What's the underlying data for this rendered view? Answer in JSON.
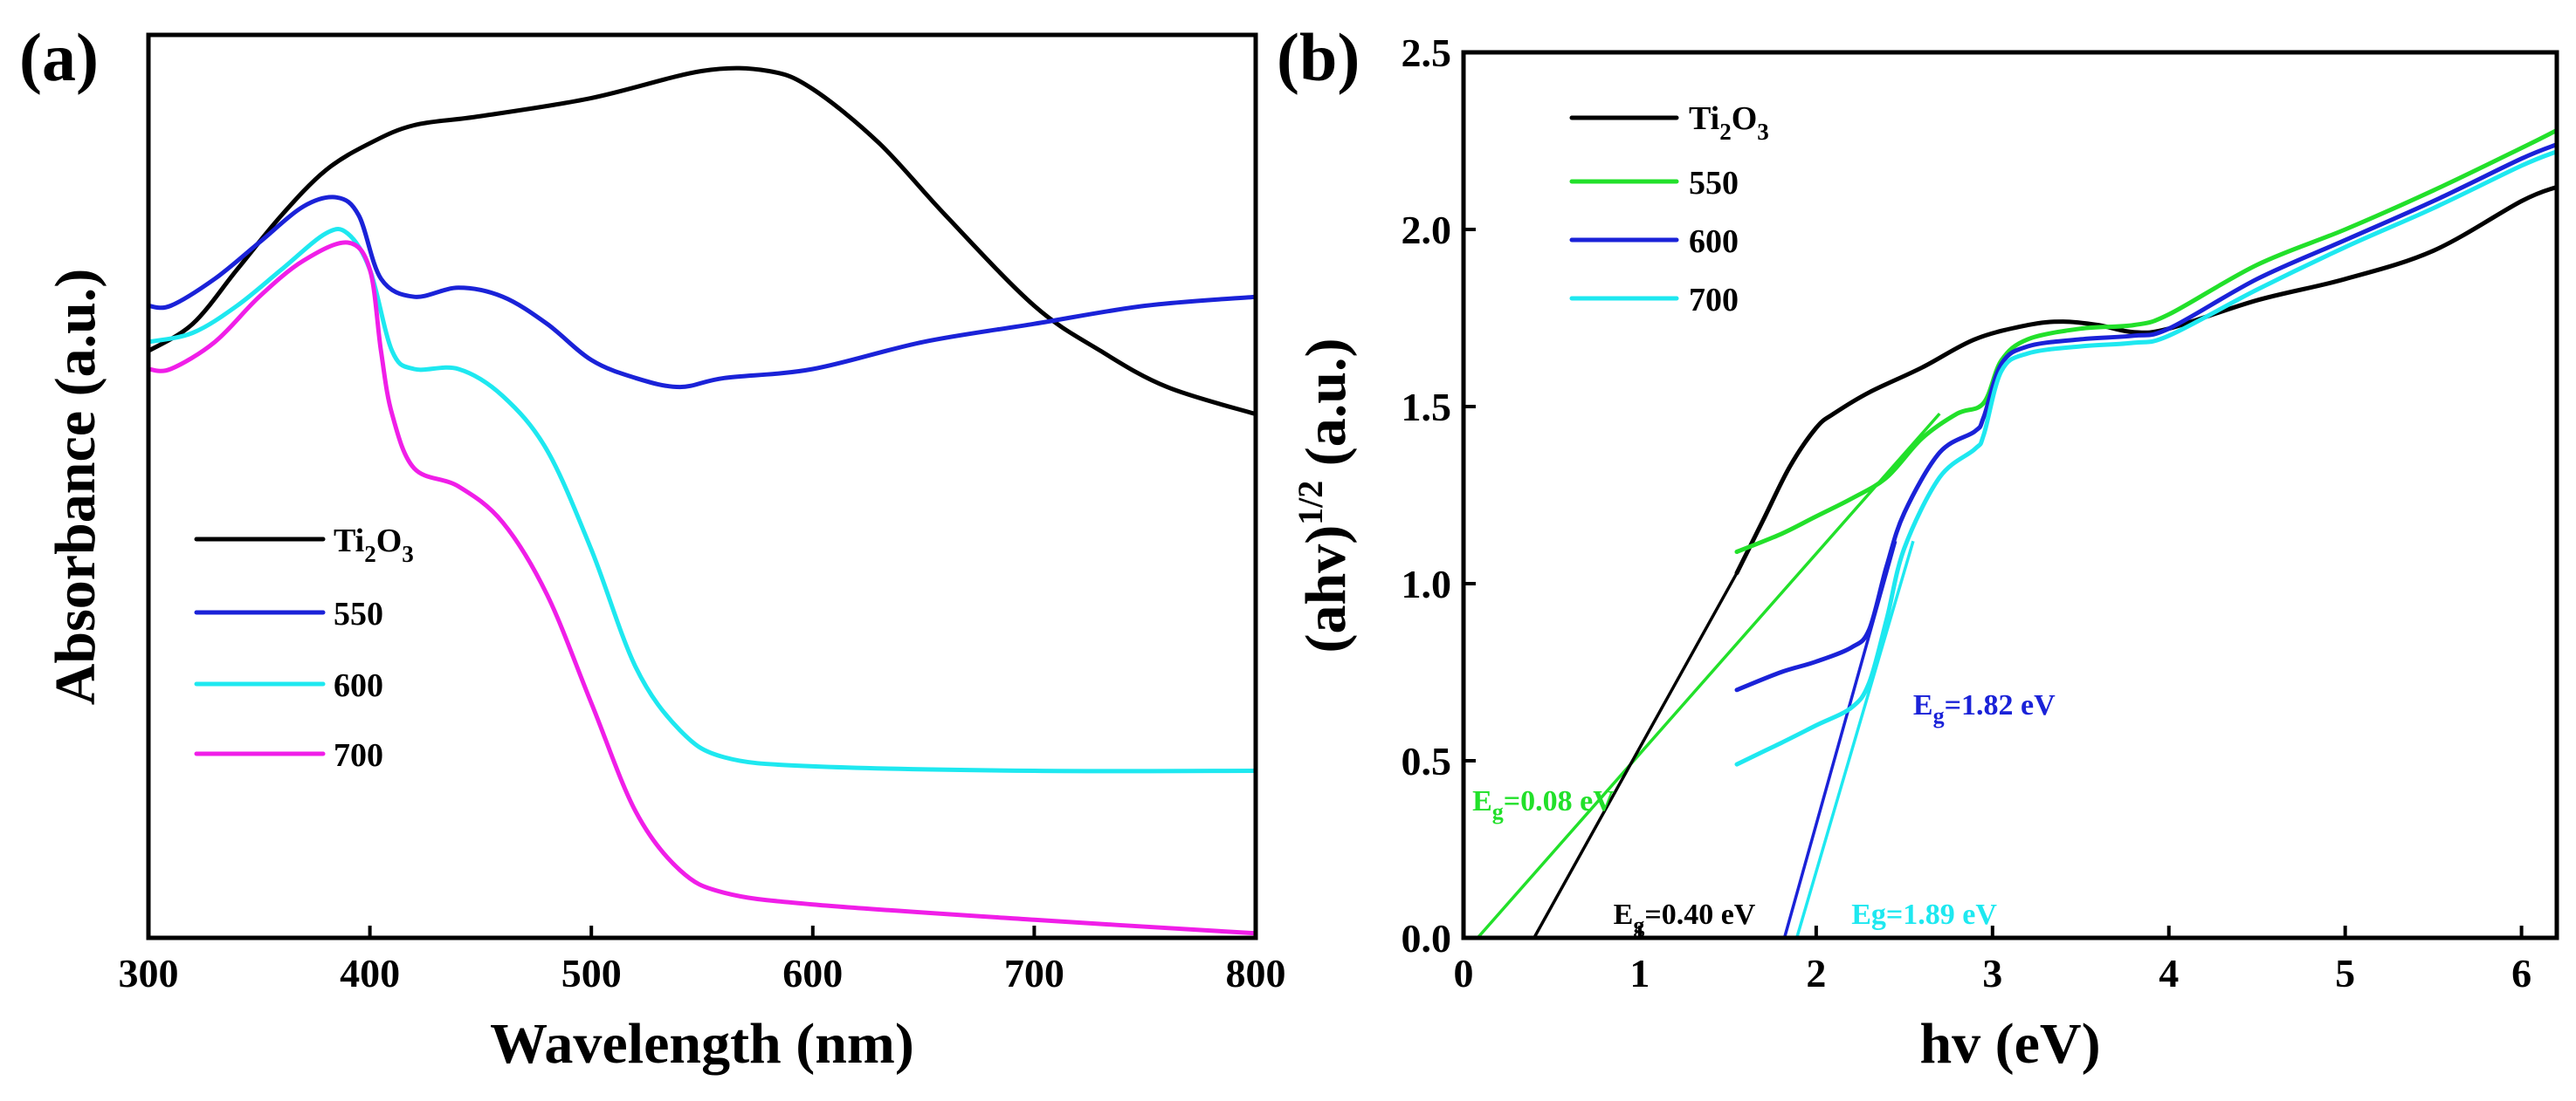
{
  "colors": {
    "Ti2O3": "#000000",
    "blue": "#1a22d8",
    "cyan": "#1ee8f0",
    "magenta": "#f01ee8",
    "green": "#22e02a"
  },
  "chart_data": [
    {
      "panel": "(a)",
      "type": "line",
      "xlabel": "Wavelength (nm)",
      "ylabel": "Absorbance (a.u.)",
      "xlim": [
        300,
        800
      ],
      "ylim": [
        0,
        1
      ],
      "xticks": [
        "300",
        "400",
        "500",
        "600",
        "700",
        "800"
      ],
      "yticks": [],
      "legend": {
        "position": "lower-left",
        "entries": [
          {
            "key": "Ti2O3",
            "prefix": "Ti",
            "sub1": "2",
            "mid": "O",
            "sub2": "3",
            "plain": ""
          },
          {
            "key": "550",
            "plain": "550"
          },
          {
            "key": "600",
            "plain": "600"
          },
          {
            "key": "700",
            "plain": "700"
          }
        ]
      },
      "series": [
        {
          "name": "Ti2O3",
          "color": "Ti2O3",
          "x": [
            300,
            320,
            340,
            360,
            380,
            400,
            420,
            450,
            500,
            550,
            580,
            600,
            630,
            660,
            700,
            730,
            760,
            800
          ],
          "y": [
            0.65,
            0.68,
            0.74,
            0.8,
            0.85,
            0.88,
            0.9,
            0.91,
            0.93,
            0.96,
            0.96,
            0.94,
            0.88,
            0.8,
            0.7,
            0.65,
            0.61,
            0.58
          ]
        },
        {
          "name": "550",
          "color": "blue",
          "x": [
            300,
            310,
            330,
            350,
            370,
            385,
            395,
            405,
            420,
            440,
            460,
            480,
            500,
            520,
            540,
            560,
            600,
            650,
            700,
            750,
            800
          ],
          "y": [
            0.7,
            0.7,
            0.73,
            0.77,
            0.81,
            0.82,
            0.8,
            0.73,
            0.71,
            0.72,
            0.71,
            0.68,
            0.64,
            0.62,
            0.61,
            0.62,
            0.63,
            0.66,
            0.68,
            0.7,
            0.71
          ]
        },
        {
          "name": "600",
          "color": "cyan",
          "x": [
            300,
            320,
            340,
            360,
            380,
            390,
            400,
            410,
            420,
            440,
            460,
            480,
            500,
            520,
            540,
            560,
            600,
            700,
            800
          ],
          "y": [
            0.66,
            0.67,
            0.7,
            0.74,
            0.78,
            0.78,
            0.74,
            0.65,
            0.63,
            0.63,
            0.6,
            0.54,
            0.43,
            0.3,
            0.23,
            0.2,
            0.19,
            0.185,
            0.185
          ]
        },
        {
          "name": "700",
          "color": "magenta",
          "x": [
            300,
            310,
            330,
            350,
            370,
            390,
            400,
            405,
            410,
            420,
            440,
            460,
            480,
            500,
            520,
            540,
            560,
            600,
            700,
            800
          ],
          "y": [
            0.63,
            0.63,
            0.66,
            0.71,
            0.75,
            0.77,
            0.74,
            0.65,
            0.58,
            0.52,
            0.5,
            0.46,
            0.38,
            0.26,
            0.14,
            0.075,
            0.05,
            0.037,
            0.02,
            0.005
          ]
        }
      ]
    },
    {
      "panel": "(b)",
      "type": "line",
      "xlabel": "hv (eV)",
      "ylabel_main": "(ahv)",
      "ylabel_sup": "1/2",
      "ylabel_tail": " (a.u.)",
      "xlim": [
        0,
        6.2
      ],
      "ylim": [
        0,
        2.5
      ],
      "xticks": [
        {
          "v": 0,
          "label": "0"
        },
        {
          "v": 1,
          "label": "1"
        },
        {
          "v": 2,
          "label": "2"
        },
        {
          "v": 3,
          "label": "3"
        },
        {
          "v": 4,
          "label": "4"
        },
        {
          "v": 5,
          "label": "5"
        },
        {
          "v": 6,
          "label": "6"
        }
      ],
      "yticks": [
        {
          "v": 0.0,
          "label": "0.0"
        },
        {
          "v": 0.5,
          "label": "0.5"
        },
        {
          "v": 1.0,
          "label": "1.0"
        },
        {
          "v": 1.5,
          "label": "1.5"
        },
        {
          "v": 2.0,
          "label": "2.0"
        },
        {
          "v": 2.5,
          "label": "2.5"
        }
      ],
      "legend": {
        "position": "top-left",
        "entries": [
          {
            "key": "Ti2O3",
            "prefix": "Ti",
            "sub1": "2",
            "mid": "O",
            "sub2": "3",
            "plain": ""
          },
          {
            "key": "550",
            "plain": "550"
          },
          {
            "key": "600",
            "plain": "600"
          },
          {
            "key": "700",
            "plain": "700"
          }
        ]
      },
      "series": [
        {
          "name": "Ti2O3",
          "color": "Ti2O3",
          "x": [
            1.55,
            1.7,
            1.85,
            2.0,
            2.1,
            2.3,
            2.6,
            2.9,
            3.2,
            3.4,
            3.6,
            3.8,
            4.0,
            4.5,
            5.0,
            5.5,
            6.0,
            6.2
          ],
          "y": [
            1.03,
            1.18,
            1.33,
            1.44,
            1.48,
            1.54,
            1.61,
            1.69,
            1.73,
            1.74,
            1.73,
            1.71,
            1.72,
            1.8,
            1.86,
            1.94,
            2.08,
            2.12
          ]
        },
        {
          "name": "550",
          "color": "green",
          "x": [
            1.55,
            1.8,
            2.0,
            2.2,
            2.4,
            2.6,
            2.8,
            2.95,
            3.05,
            3.2,
            3.5,
            3.8,
            4.0,
            4.5,
            5.0,
            5.5,
            6.0,
            6.2
          ],
          "y": [
            1.09,
            1.14,
            1.19,
            1.24,
            1.3,
            1.41,
            1.48,
            1.51,
            1.63,
            1.69,
            1.72,
            1.73,
            1.76,
            1.9,
            2.0,
            2.11,
            2.23,
            2.28
          ]
        },
        {
          "name": "600",
          "color": "blue",
          "x": [
            1.55,
            1.8,
            2.0,
            2.2,
            2.3,
            2.4,
            2.5,
            2.7,
            2.9,
            2.95,
            3.05,
            3.2,
            3.5,
            3.8,
            4.0,
            4.5,
            5.0,
            5.5,
            6.0,
            6.2
          ],
          "y": [
            0.7,
            0.75,
            0.78,
            0.82,
            0.87,
            1.05,
            1.2,
            1.37,
            1.43,
            1.47,
            1.62,
            1.67,
            1.69,
            1.7,
            1.72,
            1.86,
            1.97,
            2.08,
            2.2,
            2.24
          ]
        },
        {
          "name": "700",
          "color": "cyan",
          "x": [
            1.55,
            1.8,
            2.0,
            2.2,
            2.3,
            2.4,
            2.5,
            2.7,
            2.9,
            2.95,
            3.05,
            3.2,
            3.5,
            3.8,
            4.0,
            4.5,
            5.0,
            5.5,
            6.0,
            6.2
          ],
          "y": [
            0.49,
            0.55,
            0.6,
            0.65,
            0.72,
            0.9,
            1.1,
            1.3,
            1.38,
            1.42,
            1.6,
            1.65,
            1.67,
            1.68,
            1.7,
            1.83,
            1.95,
            2.06,
            2.18,
            2.22
          ]
        }
      ],
      "fit_lines": [
        {
          "color": "green",
          "x": [
            0.08,
            2.7
          ],
          "y": [
            0.0,
            1.48
          ]
        },
        {
          "color": "Ti2O3",
          "x": [
            0.4,
            1.55
          ],
          "y": [
            0.0,
            1.03
          ]
        },
        {
          "color": "blue",
          "x": [
            1.82,
            2.45
          ],
          "y": [
            0.0,
            1.12
          ]
        },
        {
          "color": "cyan",
          "x": [
            1.89,
            2.55
          ],
          "y": [
            0.0,
            1.12
          ]
        }
      ],
      "annotations": [
        {
          "key": "green",
          "color": "green",
          "x": 0.05,
          "y": 0.36,
          "label_main": "E",
          "label_sub": "g",
          "label_tail": "=0.08 eV"
        },
        {
          "key": "black",
          "color": "Ti2O3",
          "x": 0.85,
          "y": 0.04,
          "label_main": "E",
          "label_sub": "g",
          "label_tail": "=0.40 eV"
        },
        {
          "key": "blue",
          "color": "blue",
          "x": 2.55,
          "y": 0.63,
          "label_main": "E",
          "label_sub": "g",
          "label_tail": "=1.82 eV"
        },
        {
          "key": "cyan",
          "color": "cyan",
          "x": 2.2,
          "y": 0.04,
          "label_main": "Eg=1.89 eV",
          "label_sub": "",
          "label_tail": ""
        }
      ]
    }
  ]
}
